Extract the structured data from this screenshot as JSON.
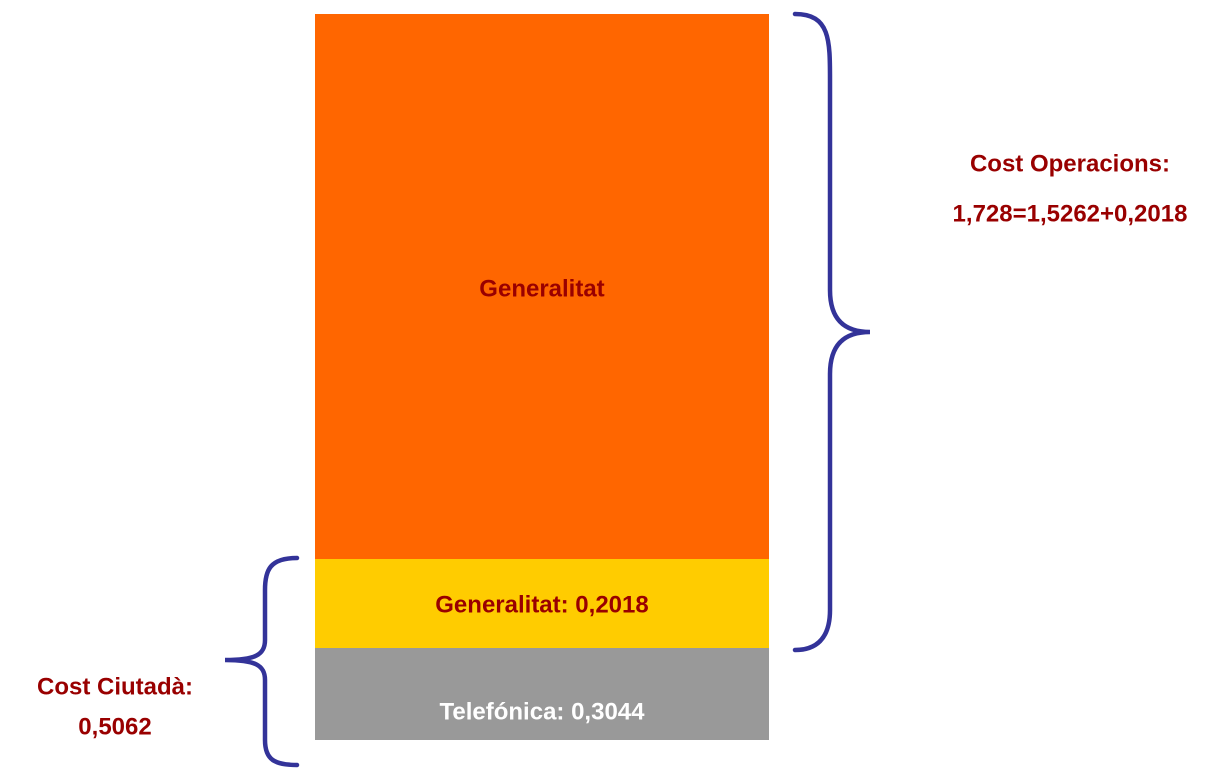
{
  "blocks": [
    {
      "label": "Generalitat"
    },
    {
      "label": "Generalitat: 0,2018"
    },
    {
      "label": "Telefónica: 0,3044"
    }
  ],
  "braces": [
    {
      "lines": [
        "Cost Operacions:",
        "1,728=1,5262+0,2018"
      ]
    },
    {
      "lines": [
        "Cost Ciutadà:",
        "0,5062"
      ]
    }
  ]
}
